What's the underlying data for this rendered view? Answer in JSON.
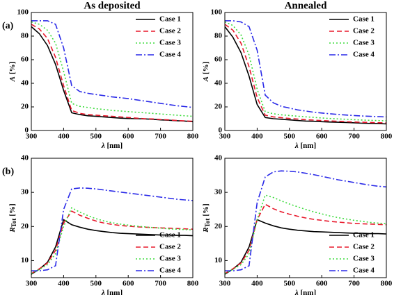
{
  "chart_data": [
    {
      "type": "line",
      "title": "As deposited",
      "panel_label": "(a)",
      "xlabel": {
        "symbol": "λ",
        "unit": "[nm]"
      },
      "ylabel": {
        "symbol": "A",
        "unit": "[%]"
      },
      "x": [
        300,
        325,
        350,
        375,
        400,
        425,
        450,
        475,
        500,
        525,
        550,
        575,
        600,
        625,
        650,
        675,
        700,
        725,
        750,
        775,
        800
      ],
      "xlim": [
        300,
        800
      ],
      "xticks": [
        300,
        400,
        500,
        600,
        700,
        800
      ],
      "ylim": [
        0,
        100
      ],
      "yticks": [
        0,
        20,
        40,
        60,
        80,
        100
      ],
      "legend": "upper right",
      "series": [
        {
          "name": "Case 1",
          "color": "#000000",
          "dash": "solid",
          "values": [
            88,
            82,
            72,
            56,
            34,
            15,
            13.5,
            12.5,
            12,
            11.5,
            11,
            10.5,
            10.2,
            10,
            9.8,
            9.5,
            9,
            8.7,
            8.3,
            8,
            7.5
          ]
        },
        {
          "name": "Case 2",
          "color": "#e8192c",
          "dash": "dash",
          "values": [
            90,
            86,
            78,
            62,
            38,
            17,
            14.5,
            13.5,
            13,
            12.5,
            12,
            11.5,
            11,
            10.5,
            10,
            9.8,
            9.3,
            9,
            8.5,
            8.2,
            7.8
          ]
        },
        {
          "name": "Case 3",
          "color": "#3ddc3d",
          "dash": "dot",
          "values": [
            92,
            90,
            85,
            74,
            50,
            23,
            20.5,
            19.5,
            18.5,
            17.8,
            17,
            16.5,
            16,
            15.5,
            15,
            14.5,
            14,
            13.5,
            13,
            12.5,
            12
          ]
        },
        {
          "name": "Case 4",
          "color": "#2a2ae8",
          "dash": "dashdot",
          "values": [
            93,
            93,
            93,
            90,
            70,
            38,
            33,
            31.5,
            30.5,
            29.5,
            28.5,
            27.8,
            27,
            26,
            25,
            24,
            23,
            22,
            21,
            20.3,
            19.5
          ]
        }
      ]
    },
    {
      "type": "line",
      "title": "Annealed",
      "xlabel": {
        "symbol": "λ",
        "unit": "[nm]"
      },
      "ylabel": {
        "symbol": "A",
        "unit": "[%]"
      },
      "x": [
        300,
        325,
        350,
        375,
        400,
        425,
        450,
        475,
        500,
        525,
        550,
        575,
        600,
        625,
        650,
        675,
        700,
        725,
        750,
        775,
        800
      ],
      "xlim": [
        300,
        800
      ],
      "xticks": [
        300,
        400,
        500,
        600,
        700,
        800
      ],
      "ylim": [
        0,
        100
      ],
      "yticks": [
        0,
        20,
        40,
        60,
        80,
        100
      ],
      "legend": "upper right",
      "series": [
        {
          "name": "Case 1",
          "color": "#000000",
          "dash": "solid",
          "values": [
            88,
            79,
            66,
            46,
            22,
            11,
            10,
            9.5,
            9,
            8.5,
            8,
            7.8,
            7.5,
            7.2,
            7,
            6.8,
            6.5,
            6.2,
            6,
            5.8,
            5.6
          ]
        },
        {
          "name": "Case 2",
          "color": "#e8192c",
          "dash": "dash",
          "values": [
            90,
            85,
            74,
            54,
            28,
            13,
            11.5,
            10.8,
            10.2,
            9.7,
            9.2,
            8.8,
            8.4,
            8.1,
            7.8,
            7.5,
            7.2,
            7,
            6.8,
            6.6,
            6.4
          ]
        },
        {
          "name": "Case 3",
          "color": "#3ddc3d",
          "dash": "dot",
          "values": [
            92,
            89,
            81,
            64,
            35,
            16,
            14.2,
            13.3,
            12.7,
            12.1,
            11.6,
            11.1,
            10.6,
            10.2,
            9.8,
            9.5,
            9.2,
            8.9,
            8.6,
            8.4,
            8.2
          ]
        },
        {
          "name": "Case 4",
          "color": "#2a2ae8",
          "dash": "dashdot",
          "values": [
            93,
            93,
            92,
            88,
            68,
            30,
            23.5,
            20.5,
            19,
            17.5,
            16.5,
            15.5,
            14.8,
            14.2,
            13.6,
            13.1,
            12.7,
            12.3,
            12,
            11.7,
            11.5
          ]
        }
      ]
    },
    {
      "type": "line",
      "panel_label": "(b)",
      "xlabel": {
        "symbol": "λ",
        "unit": "[nm]"
      },
      "ylabel": {
        "symbol": "R",
        "subscript": "Tot",
        "unit": "[%]"
      },
      "x": [
        300,
        325,
        350,
        375,
        400,
        425,
        450,
        475,
        500,
        525,
        550,
        575,
        600,
        625,
        650,
        675,
        700,
        725,
        750,
        775,
        800
      ],
      "xlim": [
        300,
        800
      ],
      "xticks": [
        300,
        400,
        500,
        600,
        700,
        800
      ],
      "ylim": [
        5,
        40
      ],
      "yticks": [
        10,
        20,
        30,
        40
      ],
      "legend": "lower right",
      "series": [
        {
          "name": "Case 1",
          "color": "#000000",
          "dash": "solid",
          "values": [
            6,
            7.5,
            9.5,
            14,
            22,
            20.5,
            19.8,
            19.2,
            18.8,
            18.5,
            18.2,
            18,
            17.9,
            17.8,
            17.7,
            17.6,
            17.5,
            17.5,
            17.4,
            17.4,
            17.3
          ]
        },
        {
          "name": "Case 2",
          "color": "#e8192c",
          "dash": "dash",
          "values": [
            6.2,
            7.6,
            9.3,
            13,
            21,
            24.5,
            23.3,
            22.4,
            21.6,
            21,
            20.6,
            20.3,
            20.1,
            19.9,
            19.8,
            19.7,
            19.6,
            19.5,
            19.4,
            19.3,
            19.2
          ]
        },
        {
          "name": "Case 3",
          "color": "#3ddc3d",
          "dash": "dot",
          "values": [
            6.2,
            7.4,
            8.8,
            12,
            20,
            25.5,
            24.2,
            23.2,
            22.3,
            21.6,
            21.1,
            20.7,
            20.4,
            20.1,
            19.9,
            19.7,
            19.5,
            19.3,
            19.2,
            19.1,
            19
          ]
        },
        {
          "name": "Case 4",
          "color": "#2a2ae8",
          "dash": "dashdot",
          "values": [
            7,
            7,
            7.3,
            8.5,
            25,
            31,
            31.3,
            31.2,
            31,
            30.7,
            30.4,
            30.1,
            29.8,
            29.5,
            29.2,
            28.9,
            28.6,
            28.3,
            28,
            27.8,
            27.6
          ]
        }
      ]
    },
    {
      "type": "line",
      "xlabel": {
        "symbol": "λ",
        "unit": "[nm]"
      },
      "ylabel": {
        "symbol": "R",
        "subscript": "Tot",
        "unit": "[%]"
      },
      "x": [
        300,
        325,
        350,
        375,
        400,
        425,
        450,
        475,
        500,
        525,
        550,
        575,
        600,
        625,
        650,
        675,
        700,
        725,
        750,
        775,
        800
      ],
      "xlim": [
        300,
        800
      ],
      "xticks": [
        300,
        400,
        500,
        600,
        700,
        800
      ],
      "ylim": [
        5,
        40
      ],
      "yticks": [
        10,
        20,
        30,
        40
      ],
      "legend": "lower right",
      "series": [
        {
          "name": "Case 1",
          "color": "#000000",
          "dash": "solid",
          "values": [
            6,
            7.5,
            9.5,
            14,
            22,
            21,
            20.2,
            19.6,
            19.2,
            18.9,
            18.7,
            18.5,
            18.4,
            18.3,
            18.2,
            18.1,
            18,
            18,
            17.9,
            17.9,
            17.8
          ]
        },
        {
          "name": "Case 2",
          "color": "#e8192c",
          "dash": "dash",
          "values": [
            6.2,
            7.6,
            9.3,
            13,
            22,
            26.5,
            25.2,
            24.3,
            23.6,
            23,
            22.5,
            22.1,
            21.8,
            21.5,
            21.3,
            21.1,
            20.9,
            20.8,
            20.7,
            20.6,
            20.5
          ]
        },
        {
          "name": "Case 3",
          "color": "#3ddc3d",
          "dash": "dot",
          "values": [
            6.2,
            7.4,
            8.8,
            12,
            22,
            29.2,
            28.5,
            27.5,
            26.6,
            25.8,
            25,
            24.3,
            23.7,
            23.1,
            22.6,
            22.2,
            21.8,
            21.5,
            21.2,
            21,
            20.8
          ]
        },
        {
          "name": "Case 4",
          "color": "#2a2ae8",
          "dash": "dashdot",
          "values": [
            7,
            7,
            7.3,
            8.5,
            27,
            34.5,
            36,
            36.3,
            36.2,
            36,
            35.6,
            35.2,
            34.7,
            34.2,
            33.7,
            33.3,
            32.9,
            32.5,
            32.1,
            31.8,
            31.6
          ]
        }
      ]
    }
  ]
}
